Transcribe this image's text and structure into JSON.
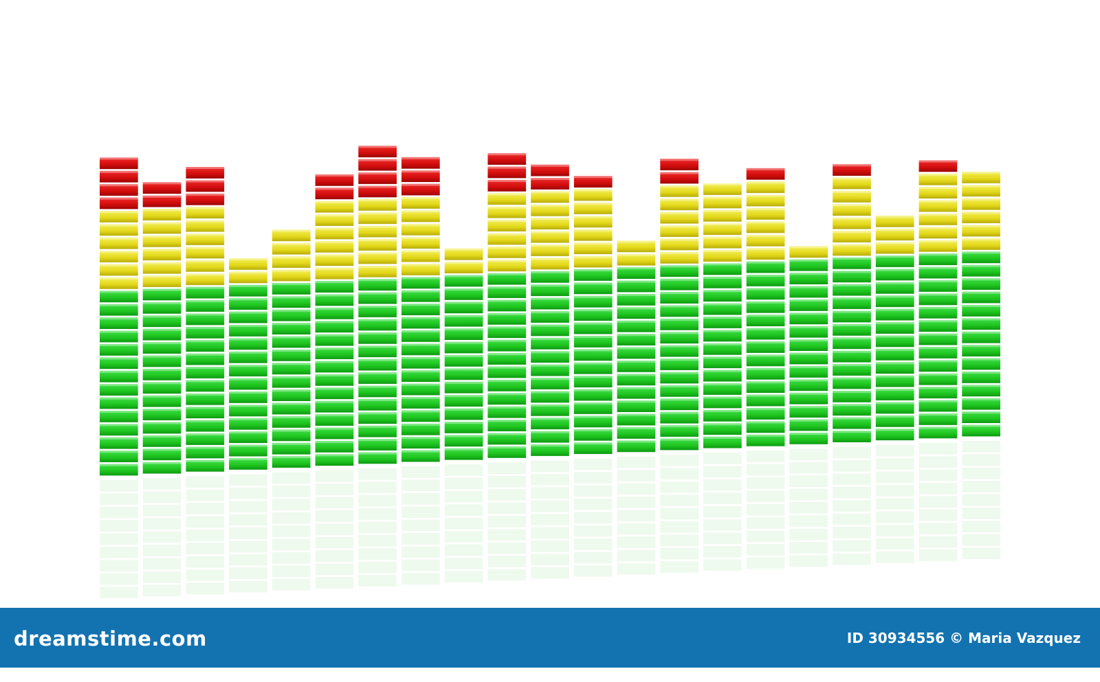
{
  "equalizer": {
    "levels": [
      24,
      22,
      23,
      16,
      18,
      22,
      24,
      23,
      16,
      23,
      22,
      21,
      16,
      22,
      20,
      21,
      15,
      21,
      17,
      21,
      20
    ]
  },
  "footer": {
    "brand": "dreamstime.com",
    "credit": "ID 30934556 © Maria Vazquez"
  }
}
